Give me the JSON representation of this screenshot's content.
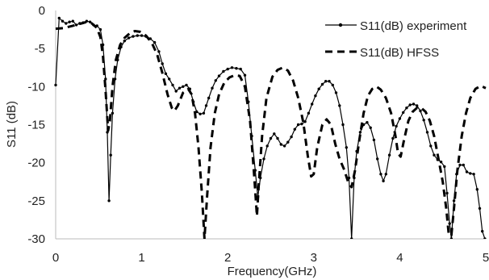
{
  "chart_data": {
    "type": "line",
    "title": "",
    "xlabel": "Frequency(GHz)",
    "ylabel": "S11 (dB)",
    "xlim": [
      0,
      5
    ],
    "ylim": [
      -30,
      0
    ],
    "x_ticks": [
      "0",
      "1",
      "2",
      "3",
      "4",
      "5"
    ],
    "y_ticks": [
      "0",
      "-5",
      "-10",
      "-15",
      "-20",
      "-25",
      "-30"
    ],
    "grid": false,
    "legend_position": "top-right",
    "series": [
      {
        "name": "S11(dB) experiment",
        "style": "solid-with-markers",
        "color": "#000000",
        "points": [
          [
            0.0,
            -9.8
          ],
          [
            0.04,
            -1.0
          ],
          [
            0.08,
            -1.4
          ],
          [
            0.12,
            -1.7
          ],
          [
            0.16,
            -1.5
          ],
          [
            0.2,
            -1.4
          ],
          [
            0.24,
            -1.9
          ],
          [
            0.28,
            -1.7
          ],
          [
            0.32,
            -1.6
          ],
          [
            0.36,
            -1.4
          ],
          [
            0.4,
            -1.5
          ],
          [
            0.44,
            -1.9
          ],
          [
            0.48,
            -2.0
          ],
          [
            0.52,
            -2.5
          ],
          [
            0.55,
            -4.5
          ],
          [
            0.58,
            -9.0
          ],
          [
            0.6,
            -16.0
          ],
          [
            0.62,
            -25.0
          ],
          [
            0.64,
            -19.0
          ],
          [
            0.66,
            -13.5
          ],
          [
            0.69,
            -9.0
          ],
          [
            0.72,
            -6.5
          ],
          [
            0.76,
            -4.8
          ],
          [
            0.8,
            -4.0
          ],
          [
            0.85,
            -3.6
          ],
          [
            0.9,
            -3.4
          ],
          [
            0.95,
            -3.3
          ],
          [
            1.0,
            -3.3
          ],
          [
            1.05,
            -3.4
          ],
          [
            1.1,
            -3.7
          ],
          [
            1.15,
            -4.2
          ],
          [
            1.2,
            -5.4
          ],
          [
            1.24,
            -7.0
          ],
          [
            1.28,
            -8.3
          ],
          [
            1.32,
            -9.0
          ],
          [
            1.36,
            -9.8
          ],
          [
            1.4,
            -10.6
          ],
          [
            1.44,
            -10.2
          ],
          [
            1.48,
            -10.0
          ],
          [
            1.52,
            -9.8
          ],
          [
            1.56,
            -10.3
          ],
          [
            1.6,
            -12.0
          ],
          [
            1.64,
            -13.3
          ],
          [
            1.68,
            -13.6
          ],
          [
            1.72,
            -13.5
          ],
          [
            1.75,
            -12.5
          ],
          [
            1.78,
            -11.5
          ],
          [
            1.82,
            -10.2
          ],
          [
            1.86,
            -9.2
          ],
          [
            1.9,
            -8.6
          ],
          [
            1.95,
            -8.0
          ],
          [
            2.0,
            -7.7
          ],
          [
            2.05,
            -7.5
          ],
          [
            2.1,
            -7.6
          ],
          [
            2.15,
            -7.7
          ],
          [
            2.2,
            -8.5
          ],
          [
            2.24,
            -12.0
          ],
          [
            2.28,
            -16.5
          ],
          [
            2.32,
            -21.0
          ],
          [
            2.35,
            -24.5
          ],
          [
            2.38,
            -22.0
          ],
          [
            2.42,
            -19.5
          ],
          [
            2.46,
            -17.8
          ],
          [
            2.5,
            -16.8
          ],
          [
            2.54,
            -16.2
          ],
          [
            2.58,
            -16.8
          ],
          [
            2.62,
            -17.6
          ],
          [
            2.66,
            -17.8
          ],
          [
            2.7,
            -17.3
          ],
          [
            2.74,
            -16.6
          ],
          [
            2.78,
            -15.6
          ],
          [
            2.82,
            -15.0
          ],
          [
            2.86,
            -14.9
          ],
          [
            2.9,
            -14.6
          ],
          [
            2.94,
            -13.5
          ],
          [
            2.98,
            -12.3
          ],
          [
            3.02,
            -11.2
          ],
          [
            3.06,
            -10.3
          ],
          [
            3.1,
            -9.7
          ],
          [
            3.14,
            -9.3
          ],
          [
            3.18,
            -9.3
          ],
          [
            3.22,
            -9.8
          ],
          [
            3.26,
            -10.8
          ],
          [
            3.3,
            -12.5
          ],
          [
            3.34,
            -15.0
          ],
          [
            3.38,
            -18.0
          ],
          [
            3.41,
            -22.0
          ],
          [
            3.44,
            -30.0
          ],
          [
            3.47,
            -22.0
          ],
          [
            3.5,
            -18.5
          ],
          [
            3.54,
            -16.0
          ],
          [
            3.58,
            -15.0
          ],
          [
            3.62,
            -14.7
          ],
          [
            3.66,
            -15.4
          ],
          [
            3.7,
            -17.0
          ],
          [
            3.74,
            -19.5
          ],
          [
            3.78,
            -21.5
          ],
          [
            3.81,
            -22.4
          ],
          [
            3.84,
            -21.5
          ],
          [
            3.88,
            -19.0
          ],
          [
            3.92,
            -16.8
          ],
          [
            3.96,
            -15.2
          ],
          [
            4.0,
            -14.2
          ],
          [
            4.04,
            -13.4
          ],
          [
            4.08,
            -12.8
          ],
          [
            4.12,
            -12.4
          ],
          [
            4.16,
            -12.3
          ],
          [
            4.2,
            -12.5
          ],
          [
            4.24,
            -13.2
          ],
          [
            4.28,
            -14.4
          ],
          [
            4.32,
            -16.0
          ],
          [
            4.36,
            -17.8
          ],
          [
            4.4,
            -19.0
          ],
          [
            4.44,
            -19.6
          ],
          [
            4.48,
            -19.9
          ],
          [
            4.52,
            -20.5
          ],
          [
            4.55,
            -24.0
          ],
          [
            4.58,
            -28.0
          ],
          [
            4.6,
            -30.0
          ],
          [
            4.63,
            -25.0
          ],
          [
            4.66,
            -21.5
          ],
          [
            4.7,
            -20.3
          ],
          [
            4.74,
            -20.3
          ],
          [
            4.78,
            -21.2
          ],
          [
            4.82,
            -21.4
          ],
          [
            4.86,
            -21.5
          ],
          [
            4.9,
            -23.5
          ],
          [
            4.93,
            -26.0
          ],
          [
            4.96,
            -29.0
          ],
          [
            4.99,
            -30.0
          ]
        ]
      },
      {
        "name": "S11(dB) HFSS",
        "style": "dashed",
        "color": "#000000",
        "points": [
          [
            0.0,
            -2.4
          ],
          [
            0.1,
            -2.3
          ],
          [
            0.2,
            -2.0
          ],
          [
            0.3,
            -1.7
          ],
          [
            0.36,
            -1.5
          ],
          [
            0.42,
            -1.7
          ],
          [
            0.48,
            -2.3
          ],
          [
            0.52,
            -3.5
          ],
          [
            0.55,
            -6.0
          ],
          [
            0.58,
            -10.5
          ],
          [
            0.61,
            -15.8
          ],
          [
            0.63,
            -14.5
          ],
          [
            0.66,
            -10.0
          ],
          [
            0.7,
            -6.5
          ],
          [
            0.75,
            -4.5
          ],
          [
            0.8,
            -3.6
          ],
          [
            0.86,
            -3.0
          ],
          [
            0.92,
            -2.7
          ],
          [
            0.98,
            -2.8
          ],
          [
            1.05,
            -3.3
          ],
          [
            1.12,
            -4.3
          ],
          [
            1.18,
            -5.8
          ],
          [
            1.24,
            -8.2
          ],
          [
            1.3,
            -11.0
          ],
          [
            1.35,
            -12.8
          ],
          [
            1.38,
            -13.2
          ],
          [
            1.42,
            -12.5
          ],
          [
            1.48,
            -10.8
          ],
          [
            1.54,
            -10.3
          ],
          [
            1.58,
            -11.0
          ],
          [
            1.62,
            -13.5
          ],
          [
            1.66,
            -18.0
          ],
          [
            1.7,
            -24.0
          ],
          [
            1.73,
            -30.0
          ],
          [
            1.76,
            -24.5
          ],
          [
            1.8,
            -18.0
          ],
          [
            1.85,
            -13.5
          ],
          [
            1.9,
            -11.0
          ],
          [
            1.96,
            -9.5
          ],
          [
            2.02,
            -8.8
          ],
          [
            2.08,
            -8.5
          ],
          [
            2.14,
            -8.6
          ],
          [
            2.2,
            -10.0
          ],
          [
            2.26,
            -14.5
          ],
          [
            2.31,
            -22.0
          ],
          [
            2.34,
            -27.0
          ],
          [
            2.36,
            -23.0
          ],
          [
            2.4,
            -16.5
          ],
          [
            2.45,
            -11.5
          ],
          [
            2.52,
            -8.7
          ],
          [
            2.58,
            -7.8
          ],
          [
            2.64,
            -7.5
          ],
          [
            2.7,
            -7.9
          ],
          [
            2.76,
            -9.2
          ],
          [
            2.82,
            -11.5
          ],
          [
            2.88,
            -14.8
          ],
          [
            2.93,
            -19.0
          ],
          [
            2.97,
            -21.8
          ],
          [
            3.0,
            -21.5
          ],
          [
            3.04,
            -18.0
          ],
          [
            3.1,
            -15.0
          ],
          [
            3.15,
            -14.3
          ],
          [
            3.2,
            -15.0
          ],
          [
            3.25,
            -17.5
          ],
          [
            3.3,
            -19.5
          ],
          [
            3.35,
            -20.8
          ],
          [
            3.4,
            -22.5
          ],
          [
            3.44,
            -23.2
          ],
          [
            3.48,
            -21.0
          ],
          [
            3.53,
            -17.0
          ],
          [
            3.58,
            -13.5
          ],
          [
            3.63,
            -11.2
          ],
          [
            3.68,
            -10.3
          ],
          [
            3.73,
            -10.0
          ],
          [
            3.78,
            -10.4
          ],
          [
            3.84,
            -11.5
          ],
          [
            3.9,
            -13.5
          ],
          [
            3.95,
            -16.5
          ],
          [
            3.98,
            -18.8
          ],
          [
            4.01,
            -19.2
          ],
          [
            4.05,
            -17.0
          ],
          [
            4.1,
            -14.5
          ],
          [
            4.15,
            -13.3
          ],
          [
            4.2,
            -12.8
          ],
          [
            4.25,
            -12.8
          ],
          [
            4.3,
            -13.3
          ],
          [
            4.35,
            -14.5
          ],
          [
            4.4,
            -16.5
          ],
          [
            4.45,
            -19.5
          ],
          [
            4.5,
            -22.5
          ],
          [
            4.54,
            -26.0
          ],
          [
            4.57,
            -29.5
          ],
          [
            4.6,
            -29.5
          ],
          [
            4.63,
            -26.0
          ],
          [
            4.67,
            -21.0
          ],
          [
            4.72,
            -16.5
          ],
          [
            4.77,
            -13.5
          ],
          [
            4.82,
            -11.5
          ],
          [
            4.88,
            -10.3
          ],
          [
            4.94,
            -9.9
          ],
          [
            5.0,
            -10.2
          ]
        ]
      }
    ]
  }
}
